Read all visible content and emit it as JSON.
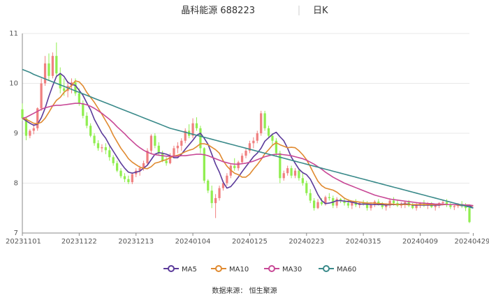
{
  "title": {
    "name": "晶科能源 688223",
    "period": "日K"
  },
  "source": "数据来源：  恒生聚源",
  "colors": {
    "up": "#f08080",
    "down": "#90ee50",
    "grid": "#e8e8e8",
    "axis": "#888888",
    "ma5": "#5b3a9a",
    "ma10": "#e08a30",
    "ma30": "#c84896",
    "ma60": "#3a8a8a"
  },
  "chart_data": {
    "type": "candlestick",
    "ylim": [
      7,
      11
    ],
    "yticks": [
      7,
      8,
      9,
      10,
      11
    ],
    "xtick_labels": [
      "20231101",
      "20231122",
      "20231213",
      "20240104",
      "20240125",
      "20240223",
      "20240315",
      "20240409",
      "20240429"
    ],
    "xtick_index": [
      0,
      15,
      30,
      45,
      60,
      75,
      90,
      105,
      119
    ],
    "grid": true,
    "legend": [
      "MA5",
      "MA10",
      "MA30",
      "MA60"
    ],
    "legend_position": "bottom",
    "candles": [
      [
        9.48,
        9.6,
        9.25,
        9.3
      ],
      [
        9.3,
        9.32,
        8.86,
        8.95
      ],
      [
        8.95,
        9.08,
        8.9,
        9.05
      ],
      [
        9.05,
        9.18,
        8.98,
        9.1
      ],
      [
        9.1,
        9.52,
        9.05,
        9.5
      ],
      [
        9.5,
        10.1,
        9.45,
        10.0
      ],
      [
        10.0,
        10.55,
        9.95,
        10.4
      ],
      [
        10.4,
        10.6,
        10.05,
        10.15
      ],
      [
        10.15,
        10.62,
        10.1,
        10.55
      ],
      [
        10.55,
        10.82,
        10.15,
        10.2
      ],
      [
        10.2,
        10.32,
        9.8,
        9.9
      ],
      [
        9.9,
        10.1,
        9.75,
        9.85
      ],
      [
        9.85,
        10.05,
        9.72,
        9.95
      ],
      [
        9.95,
        10.1,
        9.8,
        10.02
      ],
      [
        10.02,
        10.1,
        9.75,
        9.8
      ],
      [
        9.8,
        9.9,
        9.55,
        9.6
      ],
      [
        9.6,
        9.66,
        9.3,
        9.35
      ],
      [
        9.35,
        9.42,
        9.1,
        9.15
      ],
      [
        9.15,
        9.2,
        8.92,
        8.95
      ],
      [
        8.95,
        9.0,
        8.75,
        8.8
      ],
      [
        8.8,
        8.86,
        8.65,
        8.7
      ],
      [
        8.7,
        8.78,
        8.62,
        8.72
      ],
      [
        8.72,
        8.8,
        8.58,
        8.66
      ],
      [
        8.66,
        8.74,
        8.45,
        8.52
      ],
      [
        8.52,
        8.56,
        8.35,
        8.4
      ],
      [
        8.4,
        8.45,
        8.22,
        8.25
      ],
      [
        8.25,
        8.3,
        8.1,
        8.14
      ],
      [
        8.14,
        8.2,
        8.02,
        8.08
      ],
      [
        8.08,
        8.15,
        7.98,
        8.02
      ],
      [
        8.02,
        8.2,
        7.98,
        8.18
      ],
      [
        8.18,
        8.3,
        8.12,
        8.25
      ],
      [
        8.25,
        8.35,
        8.15,
        8.3
      ],
      [
        8.3,
        8.45,
        8.25,
        8.4
      ],
      [
        8.4,
        8.7,
        8.35,
        8.65
      ],
      [
        8.65,
        8.98,
        8.6,
        8.95
      ],
      [
        8.95,
        9.0,
        8.7,
        8.75
      ],
      [
        8.75,
        8.82,
        8.55,
        8.6
      ],
      [
        8.6,
        8.65,
        8.42,
        8.45
      ],
      [
        8.45,
        8.52,
        8.35,
        8.4
      ],
      [
        8.4,
        8.6,
        8.38,
        8.55
      ],
      [
        8.55,
        8.75,
        8.5,
        8.7
      ],
      [
        8.7,
        8.82,
        8.6,
        8.75
      ],
      [
        8.75,
        8.9,
        8.65,
        8.85
      ],
      [
        8.85,
        9.1,
        8.8,
        9.05
      ],
      [
        9.05,
        9.18,
        8.9,
        8.95
      ],
      [
        8.95,
        9.3,
        8.9,
        9.2
      ],
      [
        9.2,
        9.32,
        9.05,
        9.1
      ],
      [
        9.1,
        9.15,
        8.6,
        8.7
      ],
      [
        8.7,
        8.72,
        8.0,
        8.05
      ],
      [
        8.05,
        8.08,
        7.8,
        7.85
      ],
      [
        7.85,
        7.95,
        7.5,
        7.6
      ],
      [
        7.6,
        7.78,
        7.3,
        7.7
      ],
      [
        7.7,
        7.95,
        7.65,
        7.9
      ],
      [
        7.9,
        8.05,
        7.85,
        8.0
      ],
      [
        8.0,
        8.2,
        7.95,
        8.15
      ],
      [
        8.15,
        8.4,
        8.1,
        8.35
      ],
      [
        8.35,
        8.5,
        8.25,
        8.3
      ],
      [
        8.3,
        8.45,
        8.25,
        8.42
      ],
      [
        8.42,
        8.6,
        8.38,
        8.55
      ],
      [
        8.55,
        8.7,
        8.5,
        8.65
      ],
      [
        8.65,
        8.85,
        8.6,
        8.8
      ],
      [
        8.8,
        8.92,
        8.7,
        8.85
      ],
      [
        8.85,
        9.05,
        8.8,
        9.0
      ],
      [
        9.0,
        9.45,
        8.95,
        9.4
      ],
      [
        9.4,
        9.45,
        9.05,
        9.1
      ],
      [
        9.1,
        9.15,
        8.9,
        8.95
      ],
      [
        8.95,
        9.0,
        8.75,
        8.85
      ],
      [
        8.85,
        8.9,
        8.55,
        8.6
      ],
      [
        8.6,
        8.65,
        8.0,
        8.1
      ],
      [
        8.1,
        8.25,
        8.05,
        8.2
      ],
      [
        8.2,
        8.35,
        8.15,
        8.3
      ],
      [
        8.3,
        8.35,
        8.1,
        8.15
      ],
      [
        8.15,
        8.3,
        8.1,
        8.25
      ],
      [
        8.25,
        8.3,
        8.05,
        8.1
      ],
      [
        8.1,
        8.2,
        7.95,
        8.0
      ],
      [
        8.0,
        8.05,
        7.75,
        7.8
      ],
      [
        7.8,
        7.88,
        7.6,
        7.65
      ],
      [
        7.65,
        7.7,
        7.45,
        7.5
      ],
      [
        7.5,
        7.68,
        7.48,
        7.62
      ],
      [
        7.62,
        7.7,
        7.55,
        7.58
      ],
      [
        7.58,
        7.75,
        7.55,
        7.72
      ],
      [
        7.72,
        7.8,
        7.65,
        7.7
      ],
      [
        7.7,
        7.75,
        7.5,
        7.55
      ],
      [
        7.55,
        7.72,
        7.5,
        7.68
      ],
      [
        7.68,
        7.7,
        7.6,
        7.65
      ],
      [
        7.65,
        7.7,
        7.55,
        7.6
      ],
      [
        7.6,
        7.68,
        7.5,
        7.55
      ],
      [
        7.55,
        7.65,
        7.48,
        7.62
      ],
      [
        7.62,
        7.68,
        7.52,
        7.56
      ],
      [
        7.56,
        7.62,
        7.5,
        7.6
      ],
      [
        7.6,
        7.66,
        7.55,
        7.58
      ],
      [
        7.58,
        7.64,
        7.45,
        7.5
      ],
      [
        7.5,
        7.62,
        7.45,
        7.58
      ],
      [
        7.58,
        7.66,
        7.52,
        7.63
      ],
      [
        7.63,
        7.68,
        7.55,
        7.58
      ],
      [
        7.58,
        7.62,
        7.48,
        7.52
      ],
      [
        7.52,
        7.6,
        7.45,
        7.55
      ],
      [
        7.55,
        7.7,
        7.5,
        7.65
      ],
      [
        7.65,
        7.72,
        7.55,
        7.6
      ],
      [
        7.6,
        7.66,
        7.52,
        7.55
      ],
      [
        7.55,
        7.62,
        7.5,
        7.58
      ],
      [
        7.58,
        7.65,
        7.5,
        7.62
      ],
      [
        7.62,
        7.66,
        7.52,
        7.55
      ],
      [
        7.55,
        7.6,
        7.48,
        7.5
      ],
      [
        7.5,
        7.6,
        7.45,
        7.56
      ],
      [
        7.56,
        7.62,
        7.5,
        7.6
      ],
      [
        7.6,
        7.66,
        7.52,
        7.55
      ],
      [
        7.55,
        7.62,
        7.48,
        7.58
      ],
      [
        7.58,
        7.62,
        7.5,
        7.52
      ],
      [
        7.52,
        7.58,
        7.45,
        7.55
      ],
      [
        7.55,
        7.62,
        7.5,
        7.6
      ],
      [
        7.6,
        7.66,
        7.55,
        7.62
      ],
      [
        7.62,
        7.68,
        7.52,
        7.56
      ],
      [
        7.56,
        7.6,
        7.48,
        7.52
      ],
      [
        7.52,
        7.58,
        7.46,
        7.54
      ],
      [
        7.54,
        7.6,
        7.5,
        7.58
      ],
      [
        7.58,
        7.64,
        7.5,
        7.55
      ],
      [
        7.55,
        7.6,
        7.44,
        7.5
      ],
      [
        7.5,
        7.55,
        7.2,
        7.22
      ]
    ],
    "series": [
      {
        "name": "MA5",
        "values": [
          9.3,
          9.25,
          9.2,
          9.16,
          9.18,
          9.31,
          9.5,
          9.74,
          9.95,
          10.14,
          10.2,
          10.14,
          10.02,
          9.98,
          9.96,
          9.86,
          9.76,
          9.61,
          9.47,
          9.28,
          9.14,
          9.0,
          8.9,
          8.76,
          8.64,
          8.52,
          8.4,
          8.3,
          8.22,
          8.2,
          8.22,
          8.24,
          8.3,
          8.36,
          8.47,
          8.58,
          8.61,
          8.6,
          8.58,
          8.55,
          8.51,
          8.51,
          8.58,
          8.68,
          8.77,
          8.86,
          8.96,
          9.0,
          8.9,
          8.78,
          8.58,
          8.38,
          8.22,
          8.02,
          7.9,
          7.93,
          8.02,
          8.12,
          8.23,
          8.33,
          8.43,
          8.53,
          8.6,
          8.7,
          8.84,
          8.91,
          8.98,
          9.02,
          8.93,
          8.85,
          8.7,
          8.52,
          8.4,
          8.28,
          8.21,
          8.17,
          8.08,
          7.93,
          7.77,
          7.65,
          7.59,
          7.6,
          7.62,
          7.65,
          7.65,
          7.64,
          7.63,
          7.62,
          7.6,
          7.58,
          7.58,
          7.58,
          7.57,
          7.57,
          7.57,
          7.57,
          7.56,
          7.57,
          7.57,
          7.57,
          7.58,
          7.58,
          7.58,
          7.56,
          7.56,
          7.56,
          7.56,
          7.56,
          7.56,
          7.56,
          7.56,
          7.57,
          7.57,
          7.57,
          7.57,
          7.56,
          7.55,
          7.55,
          7.55,
          7.5
        ]
      },
      {
        "name": "MA10",
        "values": [
          9.3,
          9.28,
          9.24,
          9.2,
          9.19,
          9.22,
          9.3,
          9.42,
          9.55,
          9.66,
          9.72,
          9.82,
          9.88,
          9.96,
          10.05,
          10.03,
          9.95,
          9.82,
          9.72,
          9.62,
          9.5,
          9.38,
          9.25,
          9.12,
          8.96,
          8.83,
          8.7,
          8.6,
          8.49,
          8.42,
          8.37,
          8.32,
          8.3,
          8.29,
          8.33,
          8.4,
          8.42,
          8.45,
          8.47,
          8.51,
          8.54,
          8.56,
          8.59,
          8.63,
          8.66,
          8.68,
          8.73,
          8.79,
          8.79,
          8.77,
          8.72,
          8.67,
          8.6,
          8.45,
          8.34,
          8.26,
          8.2,
          8.17,
          8.12,
          8.12,
          8.18,
          8.28,
          8.37,
          8.47,
          8.59,
          8.67,
          8.76,
          8.81,
          8.77,
          8.74,
          8.71,
          8.72,
          8.71,
          8.65,
          8.57,
          8.47,
          8.33,
          8.18,
          8.04,
          7.95,
          7.9,
          7.88,
          7.86,
          7.82,
          7.76,
          7.7,
          7.66,
          7.64,
          7.63,
          7.62,
          7.61,
          7.6,
          7.6,
          7.6,
          7.59,
          7.59,
          7.58,
          7.58,
          7.58,
          7.57,
          7.57,
          7.57,
          7.57,
          7.57,
          7.57,
          7.57,
          7.57,
          7.57,
          7.57,
          7.57,
          7.57,
          7.57,
          7.57,
          7.57,
          7.57,
          7.56,
          7.56,
          7.56,
          7.56,
          7.54
        ]
      },
      {
        "name": "MA30",
        "values": [
          9.3,
          9.32,
          9.36,
          9.4,
          9.44,
          9.48,
          9.51,
          9.53,
          9.55,
          9.56,
          9.56,
          9.57,
          9.58,
          9.59,
          9.6,
          9.6,
          9.59,
          9.57,
          9.54,
          9.5,
          9.45,
          9.4,
          9.34,
          9.28,
          9.21,
          9.13,
          9.06,
          8.99,
          8.91,
          8.84,
          8.77,
          8.71,
          8.66,
          8.62,
          8.59,
          8.57,
          8.56,
          8.55,
          8.54,
          8.54,
          8.54,
          8.54,
          8.55,
          8.55,
          8.56,
          8.57,
          8.58,
          8.58,
          8.57,
          8.55,
          8.52,
          8.49,
          8.46,
          8.43,
          8.41,
          8.39,
          8.38,
          8.38,
          8.39,
          8.4,
          8.42,
          8.44,
          8.47,
          8.5,
          8.53,
          8.55,
          8.57,
          8.58,
          8.58,
          8.57,
          8.56,
          8.55,
          8.53,
          8.51,
          8.49,
          8.46,
          8.42,
          8.38,
          8.33,
          8.28,
          8.22,
          8.17,
          8.12,
          8.08,
          8.04,
          8.0,
          7.97,
          7.94,
          7.91,
          7.88,
          7.85,
          7.82,
          7.79,
          7.76,
          7.74,
          7.72,
          7.7,
          7.68,
          7.67,
          7.66,
          7.65,
          7.64,
          7.63,
          7.62,
          7.61,
          7.6,
          7.6,
          7.59,
          7.59,
          7.58,
          7.58,
          7.58,
          7.57,
          7.57,
          7.57,
          7.57,
          7.57,
          7.56,
          7.56,
          7.55
        ]
      },
      {
        "name": "MA60",
        "values": [
          10.28,
          10.25,
          10.22,
          10.18,
          10.15,
          10.12,
          10.09,
          10.06,
          10.03,
          10.0,
          9.97,
          9.94,
          9.91,
          9.88,
          9.85,
          9.82,
          9.79,
          9.76,
          9.73,
          9.7,
          9.67,
          9.64,
          9.61,
          9.58,
          9.55,
          9.52,
          9.49,
          9.46,
          9.43,
          9.4,
          9.37,
          9.34,
          9.31,
          9.28,
          9.25,
          9.22,
          9.19,
          9.16,
          9.13,
          9.1,
          9.08,
          9.06,
          9.04,
          9.02,
          9.0,
          8.98,
          8.96,
          8.94,
          8.92,
          8.9,
          8.88,
          8.86,
          8.84,
          8.82,
          8.8,
          8.78,
          8.76,
          8.74,
          8.72,
          8.7,
          8.68,
          8.66,
          8.64,
          8.62,
          8.6,
          8.58,
          8.56,
          8.54,
          8.52,
          8.5,
          8.48,
          8.46,
          8.44,
          8.42,
          8.4,
          8.38,
          8.36,
          8.34,
          8.32,
          8.3,
          8.28,
          8.26,
          8.24,
          8.22,
          8.2,
          8.18,
          8.16,
          8.14,
          8.12,
          8.1,
          8.08,
          8.06,
          8.04,
          8.02,
          8.0,
          7.98,
          7.96,
          7.94,
          7.92,
          7.9,
          7.88,
          7.86,
          7.84,
          7.82,
          7.8,
          7.78,
          7.76,
          7.74,
          7.72,
          7.7,
          7.68,
          7.66,
          7.64,
          7.62,
          7.6,
          7.58,
          7.56,
          7.54,
          7.52,
          7.5
        ]
      }
    ]
  }
}
